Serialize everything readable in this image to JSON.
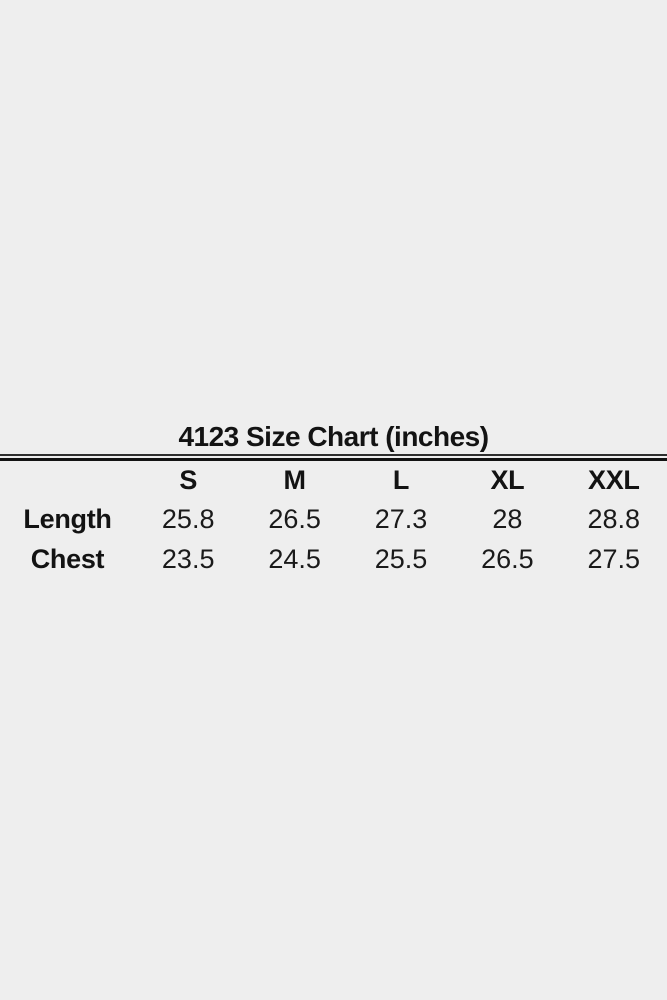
{
  "background_color": "#eeeeee",
  "text_color": "#1a1a1a",
  "rule_top_color": "#2e2e2e",
  "rule_bottom_color": "#121212",
  "chart_data": {
    "type": "table",
    "title": "4123 Size Chart (inches)",
    "columns": [
      "",
      "S",
      "M",
      "L",
      "XL",
      "XXL"
    ],
    "rows": [
      {
        "label": "Length",
        "values": [
          "25.8",
          "26.5",
          "27.3",
          "28",
          "28.8"
        ]
      },
      {
        "label": "Chest",
        "values": [
          "23.5",
          "24.5",
          "25.5",
          "26.5",
          "27.5"
        ]
      }
    ],
    "layout": {
      "title_align": "center",
      "grid": "off",
      "divider": "double-rule-below-title"
    }
  }
}
